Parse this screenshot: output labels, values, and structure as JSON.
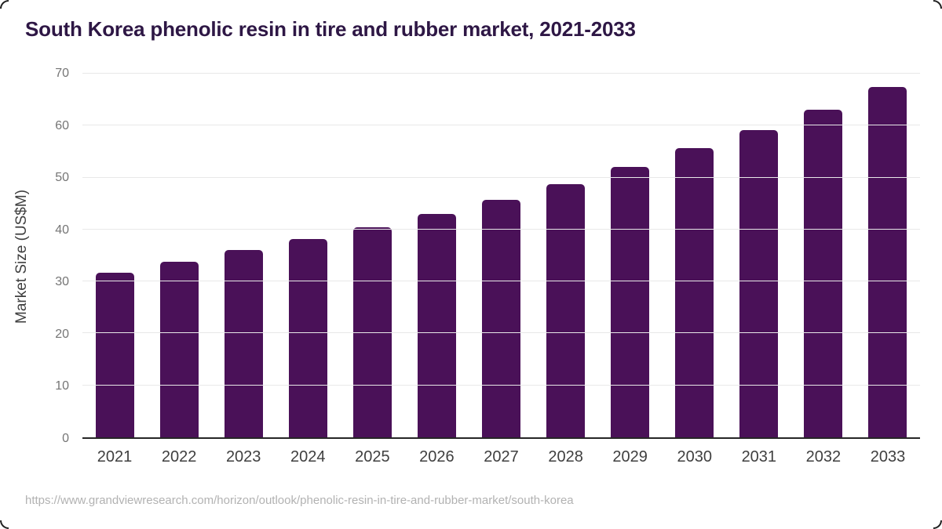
{
  "header": {
    "title": "South Korea phenolic resin in tire and rubber market, 2021-2033"
  },
  "chart_data": {
    "type": "bar",
    "title": "South Korea phenolic resin in tire and rubber market, 2021-2033",
    "categories": [
      "2021",
      "2022",
      "2023",
      "2024",
      "2025",
      "2026",
      "2027",
      "2028",
      "2029",
      "2030",
      "2031",
      "2032",
      "2033"
    ],
    "values": [
      31.7,
      33.8,
      36.0,
      38.2,
      40.5,
      43.0,
      45.7,
      48.8,
      52.1,
      55.6,
      59.1,
      63.1,
      67.4
    ],
    "xlabel": "",
    "ylabel": "Market Size (US$M)",
    "ylim": [
      0,
      70
    ],
    "yticks": [
      0,
      10,
      20,
      30,
      40,
      50,
      60,
      70
    ],
    "grid": true,
    "legend_position": "none",
    "bar_color": "#4a1158"
  },
  "colors": {
    "bar": "#4a1158",
    "title": "#2e1745",
    "y_tick": "#757575",
    "x_tick": "#3f3f3f",
    "axis_title": "#3f3f3f",
    "gridline": "#e8e8e8",
    "axis_line": "#262626",
    "footer": "#b2b2b2",
    "background": "#ffffff"
  },
  "footer": {
    "source_url": "https://www.grandviewresearch.com/horizon/outlook/phenolic-resin-in-tire-and-rubber-market/south-korea"
  }
}
